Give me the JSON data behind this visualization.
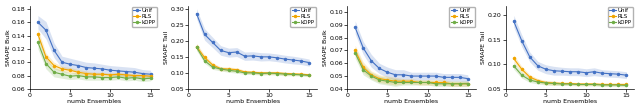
{
  "x": [
    1,
    2,
    3,
    4,
    5,
    6,
    7,
    8,
    9,
    10,
    11,
    12,
    13,
    14,
    15
  ],
  "plots": [
    {
      "ylabel": "SMAPE Bulk",
      "ylim": [
        0.06,
        0.185
      ],
      "yticks": [
        0.06,
        0.08,
        0.1,
        0.12,
        0.14,
        0.16,
        0.18
      ],
      "Unif_mean": [
        0.16,
        0.148,
        0.118,
        0.1,
        0.097,
        0.095,
        0.092,
        0.091,
        0.09,
        0.088,
        0.087,
        0.086,
        0.085,
        0.083,
        0.082
      ],
      "Unif_std": [
        0.01,
        0.013,
        0.011,
        0.009,
        0.009,
        0.008,
        0.008,
        0.008,
        0.007,
        0.007,
        0.007,
        0.007,
        0.007,
        0.006,
        0.006
      ],
      "RLS_mean": [
        0.142,
        0.108,
        0.095,
        0.09,
        0.088,
        0.085,
        0.083,
        0.082,
        0.082,
        0.081,
        0.082,
        0.081,
        0.08,
        0.08,
        0.079
      ],
      "RLS_std": [
        0.008,
        0.006,
        0.005,
        0.004,
        0.004,
        0.004,
        0.004,
        0.003,
        0.003,
        0.003,
        0.003,
        0.003,
        0.003,
        0.003,
        0.003
      ],
      "kDPP_mean": [
        0.13,
        0.098,
        0.085,
        0.082,
        0.079,
        0.08,
        0.078,
        0.078,
        0.077,
        0.077,
        0.078,
        0.076,
        0.077,
        0.075,
        0.076
      ],
      "kDPP_std": [
        0.01,
        0.008,
        0.007,
        0.006,
        0.005,
        0.005,
        0.005,
        0.005,
        0.004,
        0.004,
        0.004,
        0.004,
        0.004,
        0.004,
        0.004
      ]
    },
    {
      "ylabel": "SMAPE Tail",
      "ylim": [
        0.05,
        0.31
      ],
      "yticks": [
        0.05,
        0.1,
        0.15,
        0.2,
        0.25,
        0.3
      ],
      "Unif_mean": [
        0.285,
        0.22,
        0.195,
        0.17,
        0.163,
        0.165,
        0.152,
        0.153,
        0.15,
        0.15,
        0.147,
        0.143,
        0.14,
        0.137,
        0.132
      ],
      "Unif_std": [
        0.015,
        0.018,
        0.016,
        0.015,
        0.014,
        0.014,
        0.013,
        0.013,
        0.013,
        0.012,
        0.012,
        0.012,
        0.012,
        0.011,
        0.011
      ],
      "RLS_mean": [
        0.182,
        0.148,
        0.125,
        0.113,
        0.112,
        0.11,
        0.103,
        0.102,
        0.1,
        0.1,
        0.1,
        0.098,
        0.097,
        0.096,
        0.094
      ],
      "RLS_std": [
        0.01,
        0.008,
        0.007,
        0.006,
        0.006,
        0.006,
        0.005,
        0.005,
        0.005,
        0.005,
        0.005,
        0.005,
        0.004,
        0.004,
        0.004
      ],
      "kDPP_mean": [
        0.18,
        0.138,
        0.118,
        0.112,
        0.108,
        0.105,
        0.1,
        0.1,
        0.098,
        0.099,
        0.098,
        0.096,
        0.095,
        0.094,
        0.092
      ],
      "kDPP_std": [
        0.01,
        0.008,
        0.007,
        0.006,
        0.006,
        0.006,
        0.005,
        0.005,
        0.005,
        0.005,
        0.005,
        0.005,
        0.004,
        0.004,
        0.004
      ]
    },
    {
      "ylabel": "SMAPE Bulk",
      "ylim": [
        0.04,
        0.105
      ],
      "yticks": [
        0.04,
        0.05,
        0.06,
        0.07,
        0.08,
        0.09,
        0.1
      ],
      "Unif_mean": [
        0.088,
        0.072,
        0.062,
        0.056,
        0.053,
        0.051,
        0.051,
        0.05,
        0.05,
        0.05,
        0.05,
        0.049,
        0.049,
        0.049,
        0.048
      ],
      "Unif_std": [
        0.005,
        0.005,
        0.005,
        0.004,
        0.004,
        0.004,
        0.004,
        0.003,
        0.003,
        0.003,
        0.003,
        0.003,
        0.003,
        0.003,
        0.003
      ],
      "RLS_mean": [
        0.07,
        0.057,
        0.051,
        0.048,
        0.047,
        0.046,
        0.046,
        0.046,
        0.045,
        0.045,
        0.045,
        0.045,
        0.044,
        0.044,
        0.044
      ],
      "RLS_std": [
        0.004,
        0.004,
        0.003,
        0.003,
        0.003,
        0.003,
        0.002,
        0.002,
        0.002,
        0.002,
        0.002,
        0.002,
        0.002,
        0.002,
        0.002
      ],
      "kDPP_mean": [
        0.068,
        0.055,
        0.05,
        0.047,
        0.046,
        0.045,
        0.045,
        0.045,
        0.045,
        0.045,
        0.044,
        0.044,
        0.044,
        0.044,
        0.044
      ],
      "kDPP_std": [
        0.004,
        0.004,
        0.003,
        0.003,
        0.003,
        0.003,
        0.002,
        0.002,
        0.002,
        0.002,
        0.002,
        0.002,
        0.002,
        0.002,
        0.002
      ]
    },
    {
      "ylabel": "SMAPE Tail",
      "ylim": [
        0.05,
        0.22
      ],
      "yticks": [
        0.05,
        0.1,
        0.15,
        0.2
      ],
      "Unif_mean": [
        0.188,
        0.148,
        0.115,
        0.097,
        0.09,
        0.087,
        0.086,
        0.085,
        0.085,
        0.083,
        0.085,
        0.082,
        0.081,
        0.08,
        0.078
      ],
      "Unif_std": [
        0.012,
        0.012,
        0.01,
        0.009,
        0.009,
        0.009,
        0.008,
        0.008,
        0.008,
        0.008,
        0.008,
        0.007,
        0.007,
        0.007,
        0.007
      ],
      "RLS_mean": [
        0.112,
        0.09,
        0.074,
        0.067,
        0.063,
        0.062,
        0.061,
        0.061,
        0.06,
        0.06,
        0.06,
        0.059,
        0.059,
        0.059,
        0.059
      ],
      "RLS_std": [
        0.007,
        0.006,
        0.005,
        0.004,
        0.004,
        0.004,
        0.003,
        0.003,
        0.003,
        0.003,
        0.003,
        0.003,
        0.003,
        0.003,
        0.003
      ],
      "kDPP_mean": [
        0.097,
        0.078,
        0.068,
        0.064,
        0.062,
        0.061,
        0.06,
        0.06,
        0.059,
        0.059,
        0.059,
        0.058,
        0.058,
        0.058,
        0.057
      ],
      "kDPP_std": [
        0.007,
        0.006,
        0.005,
        0.004,
        0.004,
        0.004,
        0.003,
        0.003,
        0.003,
        0.003,
        0.003,
        0.003,
        0.003,
        0.003,
        0.003
      ]
    }
  ],
  "color_Unif": "#4472C4",
  "color_RLS": "#F0A500",
  "color_kDPP": "#70AD47",
  "xlabel": "numb Ensembles",
  "figure_width": 6.4,
  "figure_height": 1.1
}
